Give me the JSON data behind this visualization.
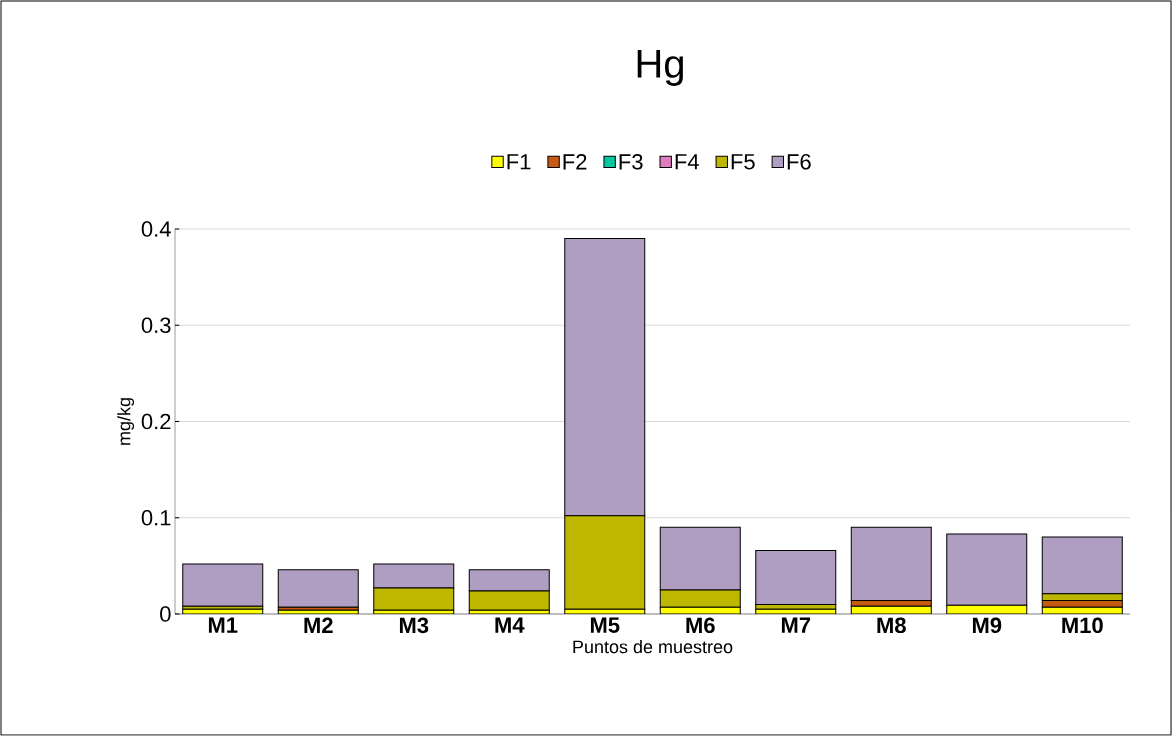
{
  "chart_data": {
    "type": "bar",
    "title": "Hg",
    "xlabel": "Puntos de muestreo",
    "ylabel": "mg/kg",
    "categories": [
      "M1",
      "M2",
      "M3",
      "M4",
      "M5",
      "M6",
      "M7",
      "M8",
      "M9",
      "M10"
    ],
    "stacked": true,
    "grid": "y",
    "legend": "top",
    "ylim": [
      0,
      0.4
    ],
    "yticks": [
      0,
      0.1,
      0.2,
      0.3,
      0.4
    ],
    "series": [
      {
        "name": "F1",
        "color": "#ffff00",
        "values": [
          0.005,
          0.004,
          0.004,
          0.004,
          0.005,
          0.007,
          0.005,
          0.008,
          0.009,
          0.007
        ]
      },
      {
        "name": "F2",
        "color": "#c55a11",
        "values": [
          0,
          0.003,
          0,
          0,
          0,
          0,
          0,
          0.006,
          0,
          0.007
        ]
      },
      {
        "name": "F3",
        "color": "#00c8a0",
        "values": [
          0,
          0,
          0,
          0,
          0,
          0,
          0,
          0,
          0,
          0
        ]
      },
      {
        "name": "F4",
        "color": "#e07cc0",
        "values": [
          0,
          0,
          0,
          0,
          0,
          0,
          0,
          0,
          0,
          0
        ]
      },
      {
        "name": "F5",
        "color": "#bdb700",
        "values": [
          0.003,
          0,
          0.023,
          0.02,
          0.097,
          0.018,
          0.005,
          0,
          0,
          0.007
        ]
      },
      {
        "name": "F6",
        "color": "#b09dc2",
        "values": [
          0.044,
          0.039,
          0.025,
          0.022,
          0.288,
          0.065,
          0.056,
          0.076,
          0.074,
          0.059
        ]
      }
    ]
  }
}
